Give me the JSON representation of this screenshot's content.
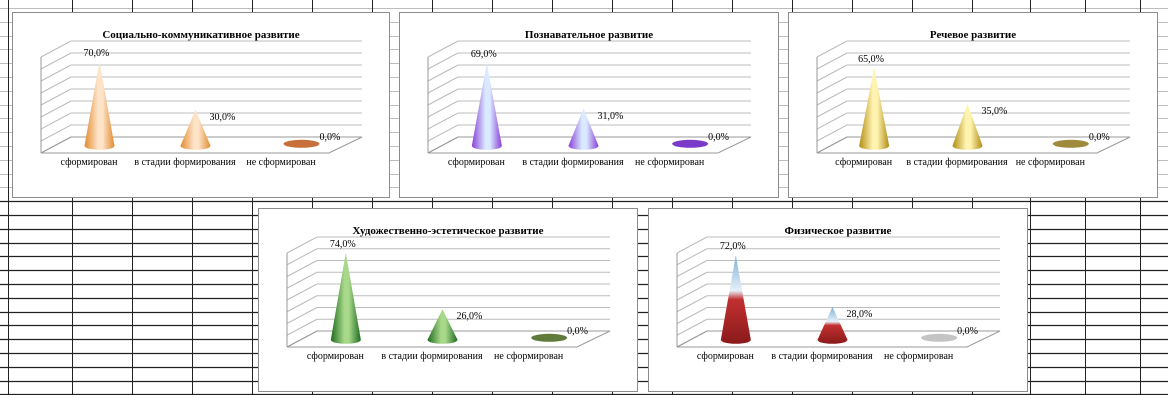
{
  "categories": [
    "сформирован",
    "в стадии формирования",
    "не сформирован"
  ],
  "chart_data": [
    {
      "type": "bar",
      "title": "Социально-коммуникативное развитие",
      "categories": [
        "сформирован",
        "в стадии формирования",
        "не сформирован"
      ],
      "values": [
        70.0,
        30.0,
        0.0
      ],
      "value_labels": [
        "70,0%",
        "30,0%",
        "0,0%"
      ],
      "colors": {
        "light": "#fde3c8",
        "dark": "#e28a2e",
        "flat": "#c8703a"
      },
      "grid": true,
      "ylim": [
        0,
        80
      ]
    },
    {
      "type": "bar",
      "title": "Познавательное развитие",
      "categories": [
        "сформирован",
        "в стадии формирования",
        "не сформирован"
      ],
      "values": [
        69.0,
        31.0,
        0.0
      ],
      "value_labels": [
        "69,0%",
        "31,0%",
        "0,0%"
      ],
      "colors": {
        "light": "#d9e9ff",
        "dark": "#8a3fd6",
        "flat": "#7a3cc8"
      },
      "grid": true,
      "ylim": [
        0,
        80
      ]
    },
    {
      "type": "bar",
      "title": "Речевое развитие",
      "categories": [
        "сформирован",
        "в стадии формирования",
        "не сформирован"
      ],
      "values": [
        65.0,
        35.0,
        0.0
      ],
      "value_labels": [
        "65,0%",
        "35,0%",
        "0,0%"
      ],
      "colors": {
        "light": "#fff3b0",
        "dark": "#b08c12",
        "flat": "#9e8a3a"
      },
      "grid": true,
      "ylim": [
        0,
        80
      ]
    },
    {
      "type": "bar",
      "title": "Художественно-эстетическое развитие",
      "categories": [
        "сформирован",
        "в стадии формирования",
        "не сформирован"
      ],
      "values": [
        74.0,
        26.0,
        0.0
      ],
      "value_labels": [
        "74,0%",
        "26,0%",
        "0,0%"
      ],
      "colors": {
        "light": "#a8d88a",
        "dark": "#1f6b1f",
        "flat": "#5f7a3a"
      },
      "grid": true,
      "ylim": [
        0,
        80
      ]
    },
    {
      "type": "bar",
      "title": "Физическое развитие",
      "categories": [
        "сформирован",
        "в стадии формирования",
        "не сформирован"
      ],
      "values": [
        72.0,
        28.0,
        0.0
      ],
      "value_labels": [
        "72,0%",
        "28,0%",
        "0,0%"
      ],
      "colors": {
        "light": "#cfe3f2",
        "dark": "#b32025",
        "flat": "#c4c4c4"
      },
      "grid": true,
      "ylim": [
        0,
        80
      ]
    }
  ]
}
